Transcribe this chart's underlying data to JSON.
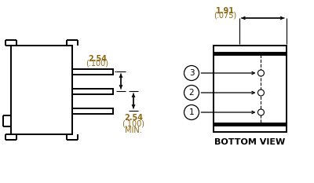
{
  "bg_color": "#ffffff",
  "line_color": "#000000",
  "dim_color": "#8B6914",
  "bottom_view_label": "BOTTOM VIEW",
  "dim1_top": "2.54",
  "dim1_bottom": "(.100)",
  "dim2_top": "2.54",
  "dim2_bottom": "(.100)",
  "dim2_extra": "MIN.",
  "dim3_top": "1.91",
  "dim3_bottom": "(.075)",
  "pin_labels": [
    "1",
    "2",
    "3"
  ]
}
